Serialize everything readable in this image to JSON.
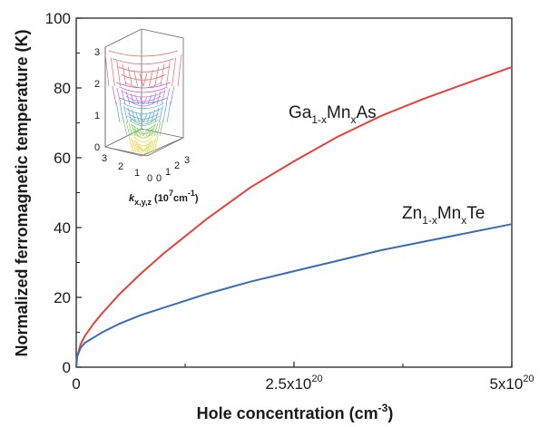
{
  "chart_data": {
    "type": "line",
    "xlabel": "Hole concentration (cm",
    "xlabel_sup": "-3",
    "xlabel_close": ")",
    "ylabel": "Normalized ferromagnetic temperature (K)",
    "xlim": [
      0,
      5e+20
    ],
    "ylim": [
      0,
      100
    ],
    "y_ticks": [
      "0",
      "20",
      "40",
      "60",
      "80",
      "100"
    ],
    "x_ticks": [
      {
        "value": 0,
        "base": "0",
        "exp": ""
      },
      {
        "value": 2.5e+20,
        "base": "2.5x10",
        "exp": "20"
      },
      {
        "value": 5e+20,
        "base": "5x10",
        "exp": "20"
      }
    ],
    "grid": false,
    "series": [
      {
        "name_parts": [
          {
            "t": "Ga",
            "s": "base"
          },
          {
            "t": "1-x",
            "s": "sub"
          },
          {
            "t": "Mn",
            "s": "base"
          },
          {
            "t": "x",
            "s": "sub"
          },
          {
            "t": "As",
            "s": "base"
          }
        ],
        "color": "#e8403a",
        "x": [
          0,
          1e+18,
          5e+18,
          1e+19,
          2e+19,
          3e+19,
          5e+19,
          7.5e+19,
          1e+20,
          1.5e+20,
          2e+20,
          2.5e+20,
          3e+20,
          3.5e+20,
          4e+20,
          4.5e+20,
          5e+20
        ],
        "y": [
          0,
          3,
          6.5,
          9,
          12.5,
          15.5,
          21,
          27,
          32.5,
          42.5,
          51.5,
          59,
          66,
          72,
          77,
          81.5,
          86
        ]
      },
      {
        "name_parts": [
          {
            "t": "Zn",
            "s": "base"
          },
          {
            "t": "1-x",
            "s": "sub"
          },
          {
            "t": "Mn",
            "s": "base"
          },
          {
            "t": "x",
            "s": "sub"
          },
          {
            "t": "Te",
            "s": "base"
          }
        ],
        "color": "#3a6bb5",
        "x": [
          0,
          1e+18,
          5e+18,
          1e+19,
          2e+19,
          3e+19,
          5e+19,
          7.5e+19,
          1e+20,
          1.5e+20,
          2e+20,
          2.5e+20,
          3e+20,
          3.5e+20,
          4e+20,
          4.5e+20,
          5e+20
        ],
        "y": [
          0,
          3,
          5.5,
          7,
          8.5,
          10,
          12.5,
          15,
          17,
          21,
          24.5,
          27.5,
          30.5,
          33.5,
          36,
          38.5,
          41
        ]
      }
    ],
    "inset": {
      "label_base": "k",
      "label_sub": "x,y,z",
      "label_rest_1": " (10",
      "label_sup": "7",
      "label_rest_2": "cm",
      "label_sup2": "-1",
      "label_close": ")",
      "z_ticks": [
        "0",
        "1",
        "2",
        "3"
      ],
      "left_ticks": [
        "3",
        "2",
        "1",
        "0"
      ],
      "right_ticks": [
        "0",
        "1",
        "2",
        "3"
      ]
    }
  }
}
